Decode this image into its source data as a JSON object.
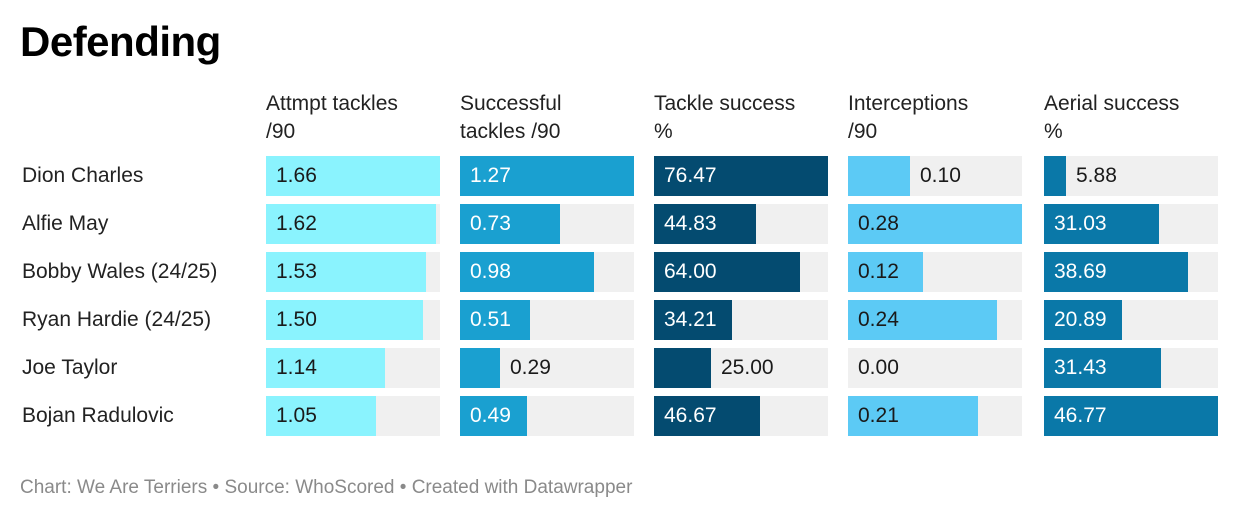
{
  "title": "Defending",
  "footer": "Chart: We Are Terriers • Source: WhoScored • Created with Datawrapper",
  "chart_data": {
    "type": "table",
    "rows": [
      "Dion Charles",
      "Alfie May",
      "Bobby Wales (24/25)",
      "Ryan Hardie (24/25)",
      "Joe Taylor",
      "Bojan Radulovic"
    ],
    "columns": [
      {
        "header_line1": "Attmpt tackles",
        "header_line2": "/90",
        "color": "#8af3fe",
        "text_color": "#1a1a1a",
        "max": 1.66,
        "values": [
          "1.66",
          "1.62",
          "1.53",
          "1.50",
          "1.14",
          "1.05"
        ]
      },
      {
        "header_line1": "Successful",
        "header_line2": "tackles /90",
        "color": "#1aa0d0",
        "text_color": "#ffffff",
        "max": 1.27,
        "values": [
          "1.27",
          "0.73",
          "0.98",
          "0.51",
          "0.29",
          "0.49"
        ]
      },
      {
        "header_line1": "Tackle success",
        "header_line2": "%",
        "color": "#044b70",
        "text_color": "#ffffff",
        "max": 76.47,
        "values": [
          "76.47",
          "44.83",
          "64.00",
          "34.21",
          "25.00",
          "46.67"
        ]
      },
      {
        "header_line1": "Interceptions",
        "header_line2": "/90",
        "color": "#5ccaf5",
        "text_color": "#1a1a1a",
        "max": 0.28,
        "values": [
          "0.10",
          "0.28",
          "0.12",
          "0.24",
          "0.00",
          "0.21"
        ]
      },
      {
        "header_line1": "Aerial success",
        "header_line2": "%",
        "color": "#0a78a8",
        "text_color": "#ffffff",
        "max": 46.77,
        "values": [
          "5.88",
          "31.03",
          "38.69",
          "20.89",
          "31.43",
          "46.77"
        ]
      }
    ]
  }
}
